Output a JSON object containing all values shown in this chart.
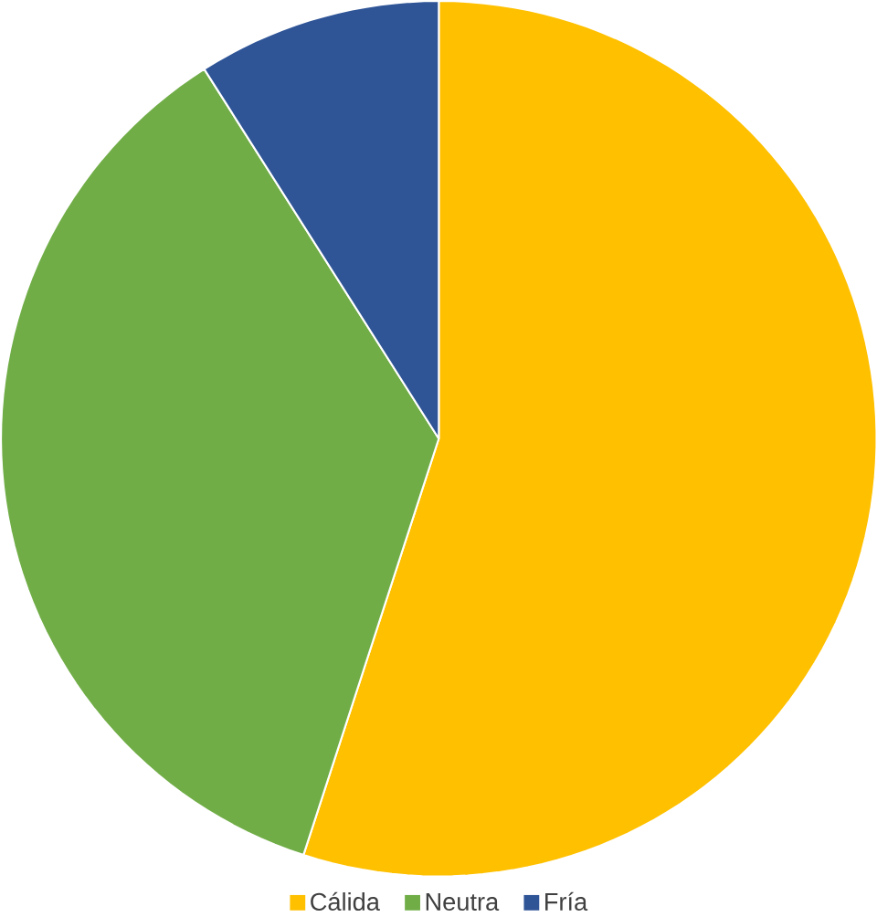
{
  "chart_data": {
    "type": "pie",
    "categories": [
      "Cálida",
      "Neutra",
      "Fría"
    ],
    "values": [
      55,
      36,
      9
    ],
    "colors": [
      "#ffc000",
      "#70ad47",
      "#2f5597"
    ],
    "legend": "bottom"
  }
}
